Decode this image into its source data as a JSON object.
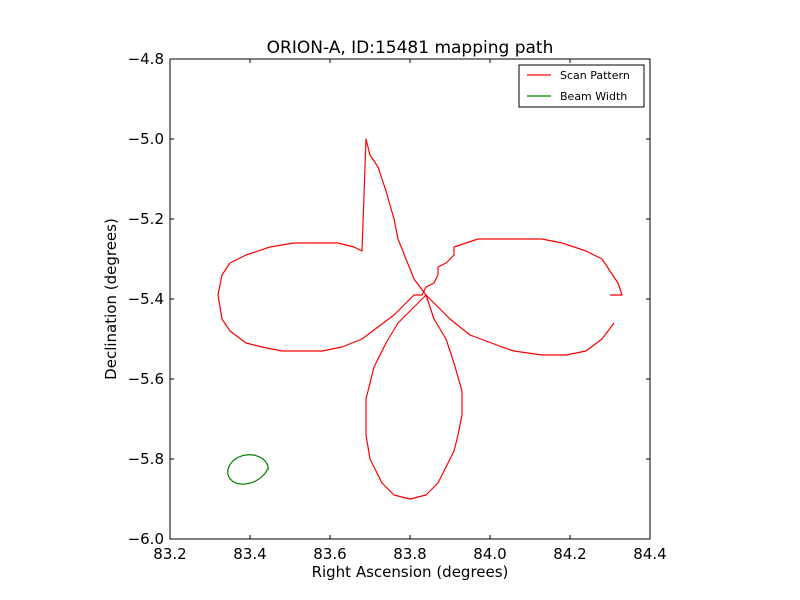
{
  "chart_data": {
    "type": "line",
    "title": "ORION-A, ID:15481 mapping path",
    "xlabel": "Right Ascension (degrees)",
    "ylabel": "Declination (degrees)",
    "xlim": [
      83.2,
      84.4
    ],
    "ylim": [
      -6.0,
      -4.8
    ],
    "x_ticks": [
      83.2,
      83.4,
      83.6,
      83.8,
      84.0,
      84.2,
      84.4
    ],
    "x_tick_labels": [
      "83.2",
      "83.4",
      "83.6",
      "83.8",
      "84.0",
      "84.2",
      "84.4"
    ],
    "y_ticks": [
      -6.0,
      -5.8,
      -5.6,
      -5.4,
      -5.2,
      -5.0,
      -4.8
    ],
    "y_tick_labels": [
      "−6.0",
      "−5.8",
      "−5.6",
      "−5.4",
      "−5.2",
      "−5.0",
      "−4.8"
    ],
    "grid": false,
    "legend_position": "top-right",
    "series": [
      {
        "name": "Scan Pattern",
        "color": "#ff0000",
        "x": [
          84.31,
          84.28,
          84.24,
          84.19,
          84.13,
          84.06,
          84.03,
          83.95,
          83.9,
          83.87,
          83.84,
          83.81,
          83.77,
          83.74,
          83.71,
          83.69,
          83.69,
          83.7,
          83.73,
          83.76,
          83.8,
          83.84,
          83.87,
          83.89,
          83.91,
          83.92,
          83.93,
          83.93,
          83.91,
          83.89,
          83.86,
          83.84,
          83.81,
          83.79,
          83.77,
          83.76,
          83.74,
          83.72,
          83.7,
          83.69,
          83.68,
          83.66,
          83.62,
          83.57,
          83.51,
          83.45,
          83.39,
          83.35,
          83.33,
          83.32,
          83.33,
          83.35,
          83.39,
          83.43,
          83.48,
          83.53,
          83.58,
          83.63,
          83.68,
          83.72,
          83.76,
          83.79,
          83.81,
          83.83,
          83.83,
          83.84,
          83.86,
          83.87,
          83.87,
          83.89,
          83.91,
          83.91,
          83.94,
          83.97,
          84.02,
          84.07,
          84.13,
          84.18,
          84.24,
          84.28,
          84.3,
          84.32,
          84.33,
          84.33,
          84.32,
          84.3
        ],
        "y": [
          -5.46,
          -5.5,
          -5.53,
          -5.54,
          -5.54,
          -5.53,
          -5.52,
          -5.49,
          -5.45,
          -5.42,
          -5.39,
          -5.42,
          -5.46,
          -5.51,
          -5.57,
          -5.65,
          -5.74,
          -5.8,
          -5.86,
          -5.89,
          -5.9,
          -5.89,
          -5.86,
          -5.82,
          -5.78,
          -5.74,
          -5.69,
          -5.63,
          -5.56,
          -5.5,
          -5.45,
          -5.39,
          -5.35,
          -5.3,
          -5.25,
          -5.2,
          -5.13,
          -5.07,
          -5.04,
          -5.0,
          -5.28,
          -5.27,
          -5.26,
          -5.26,
          -5.26,
          -5.27,
          -5.29,
          -5.31,
          -5.34,
          -5.39,
          -5.45,
          -5.48,
          -5.51,
          -5.52,
          -5.53,
          -5.53,
          -5.53,
          -5.52,
          -5.5,
          -5.47,
          -5.44,
          -5.41,
          -5.39,
          -5.39,
          -5.39,
          -5.37,
          -5.36,
          -5.34,
          -5.32,
          -5.31,
          -5.29,
          -5.27,
          -5.26,
          -5.25,
          -5.25,
          -5.25,
          -5.25,
          -5.26,
          -5.28,
          -5.3,
          -5.33,
          -5.36,
          -5.39,
          -5.39,
          -5.39,
          -5.39
        ]
      },
      {
        "name": "Beam Width",
        "color": "#008000",
        "x": [
          83.446,
          83.4437,
          83.4369,
          83.4263,
          83.4129,
          83.398,
          83.3829,
          83.369,
          83.3575,
          83.3491,
          83.3446,
          83.3446,
          83.3491,
          83.3575,
          83.369,
          83.3829,
          83.398,
          83.4129,
          83.4263,
          83.4369,
          83.4437,
          83.446
        ],
        "y": [
          -5.826,
          -5.8144,
          -5.804,
          -5.7959,
          -5.7908,
          -5.7891,
          -5.791,
          -5.7962,
          -5.8045,
          -5.8149,
          -5.8265,
          -5.838,
          -5.8484,
          -5.8564,
          -5.8614,
          -5.863,
          -5.861,
          -5.8558,
          -5.8476,
          -5.8371,
          -5.8255,
          -5.826
        ]
      }
    ]
  }
}
